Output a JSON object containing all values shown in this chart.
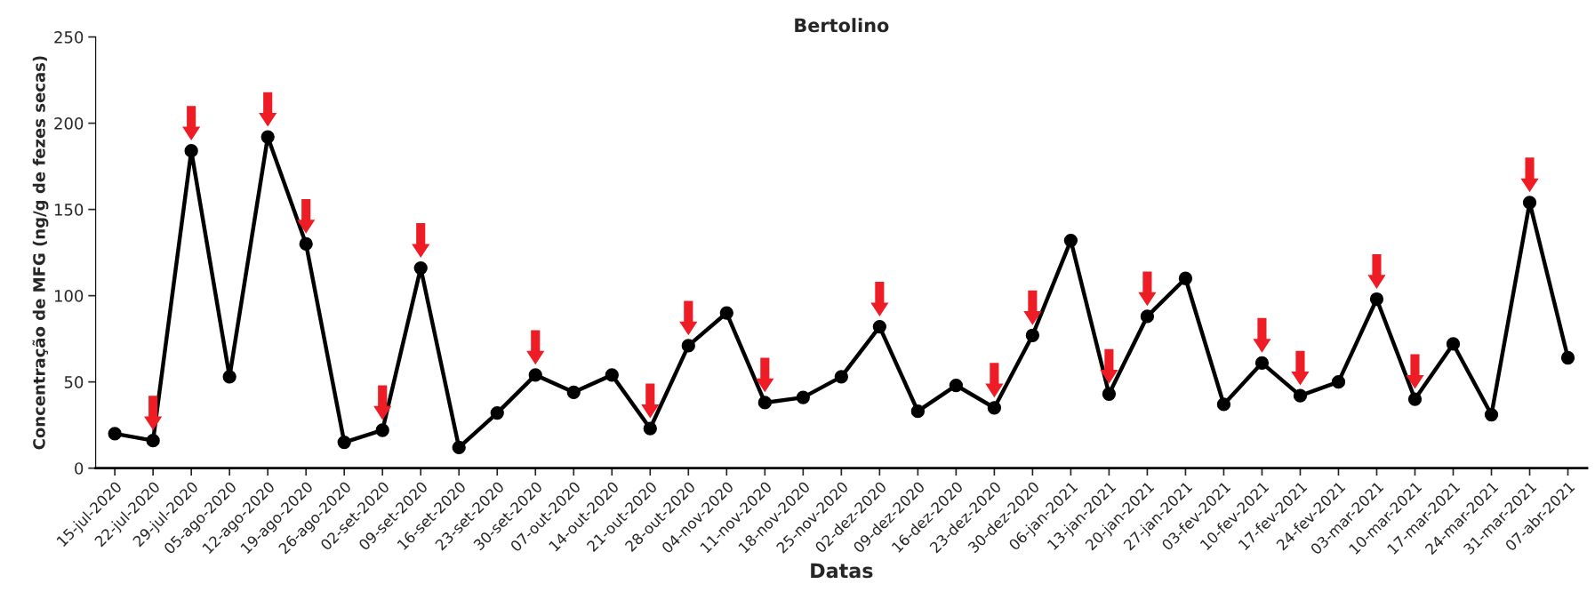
{
  "chart_data": {
    "type": "line",
    "title": "Bertolino",
    "xlabel": "Datas",
    "ylabel": "Concentração de MFG (ng/g de fezes secas)",
    "categories": [
      "15-jul-2020",
      "22-jul-2020",
      "29-jul-2020",
      "05-ago-2020",
      "12-ago-2020",
      "19-ago-2020",
      "26-ago-2020",
      "02-set-2020",
      "09-set-2020",
      "16-set-2020",
      "23-set-2020",
      "30-set-2020",
      "07-out-2020",
      "14-out-2020",
      "21-out-2020",
      "28-out-2020",
      "04-nov-2020",
      "11-nov-2020",
      "18-nov-2020",
      "25-nov-2020",
      "02-dez-2020",
      "09-dez-2020",
      "16-dez-2020",
      "23-dez-2020",
      "30-dez-2020",
      "06-jan-2021",
      "13-jan-2021",
      "20-jan-2021",
      "27-jan-2021",
      "03-fev-2021",
      "10-fev-2021",
      "17-fev-2021",
      "24-fev-2021",
      "03-mar-2021",
      "10-mar-2021",
      "17-mar-2021",
      "24-mar-2021",
      "31-mar-2021",
      "07-abr-2021"
    ],
    "series": [
      {
        "color": "#000000",
        "marker": "circle",
        "line_style": "solid",
        "values": [
          20,
          16,
          184,
          53,
          192,
          130,
          15,
          22,
          116,
          12,
          32,
          54,
          44,
          54,
          23,
          71,
          90,
          38,
          41,
          53,
          82,
          33,
          48,
          35,
          77,
          132,
          43,
          88,
          110,
          37,
          61,
          42,
          50,
          98,
          40,
          72,
          31,
          154,
          64
        ]
      },
      {
        "type": "scatter",
        "color": "#ee1c25",
        "values": [
          null,
          32,
          200,
          null,
          208,
          146,
          null,
          38,
          132,
          null,
          null,
          70,
          null,
          null,
          39,
          87,
          null,
          54,
          null,
          null,
          98,
          null,
          null,
          51,
          93,
          null,
          59,
          104,
          null,
          null,
          77,
          58,
          null,
          114,
          56,
          null,
          null,
          170,
          null
        ]
      }
    ],
    "ylim": [
      0,
      250
    ],
    "yticks": [
      0,
      50,
      100,
      150,
      200,
      250
    ],
    "grid": false,
    "legend": false
  }
}
